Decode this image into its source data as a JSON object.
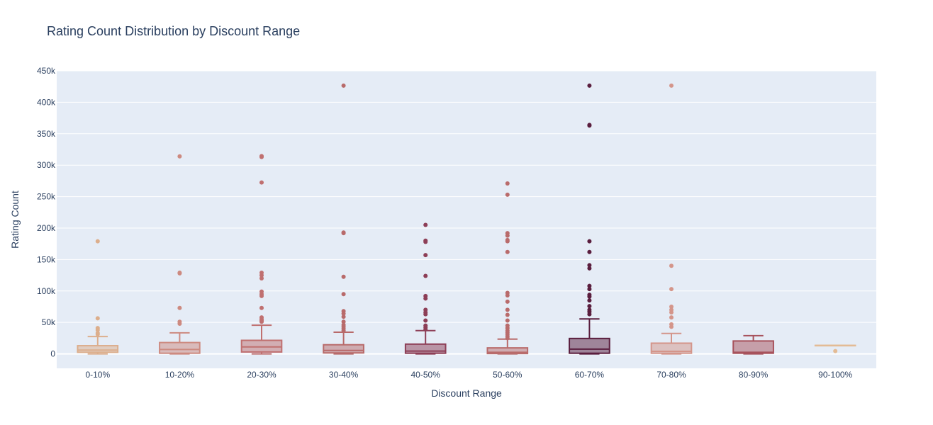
{
  "chart_data": {
    "type": "box",
    "title": "Rating Count Distribution by Discount Range",
    "xlabel": "Discount Range",
    "ylabel": "Rating Count",
    "ylim": [
      -23000,
      450000
    ],
    "yticks": [
      0,
      50000,
      100000,
      150000,
      200000,
      250000,
      300000,
      350000,
      400000,
      450000
    ],
    "ytick_labels": [
      "0",
      "50k",
      "100k",
      "150k",
      "200k",
      "250k",
      "300k",
      "350k",
      "400k",
      "450k"
    ],
    "grid": true,
    "legend": "none",
    "categories": [
      "0-10%",
      "10-20%",
      "20-30%",
      "30-40%",
      "40-50%",
      "50-60%",
      "60-70%",
      "70-80%",
      "80-90%",
      "90-100%"
    ],
    "series": [
      {
        "category": "0-10%",
        "color": "#dcae8c",
        "lowerfence": 0,
        "q1": 2500,
        "median": 6000,
        "q3": 13000,
        "upperfence": 27500,
        "outliers": [
          31000,
          33000,
          38000,
          41000,
          56500,
          179000
        ]
      },
      {
        "category": "10-20%",
        "color": "#cd8a80",
        "lowerfence": 0,
        "q1": 1000,
        "median": 7000,
        "q3": 18000,
        "upperfence": 33500,
        "outliers": [
          48000,
          51000,
          73000,
          128000,
          129000,
          314000
        ]
      },
      {
        "category": "20-30%",
        "color": "#c07070",
        "lowerfence": 0,
        "q1": 3000,
        "median": 11000,
        "q3": 21500,
        "upperfence": 45500,
        "outliers": [
          51000,
          53000,
          55000,
          58000,
          73000,
          92000,
          95000,
          99000,
          120000,
          125000,
          129000,
          272500,
          313000,
          314500
        ]
      },
      {
        "category": "30-40%",
        "color": "#b86a6a",
        "lowerfence": 0,
        "q1": 1500,
        "median": 5500,
        "q3": 14500,
        "upperfence": 34500,
        "outliers": [
          37000,
          40000,
          43000,
          46000,
          51000,
          59000,
          64000,
          68000,
          95000,
          122500,
          192000,
          193000,
          426500
        ]
      },
      {
        "category": "40-50%",
        "color": "#8d3e56",
        "lowerfence": 0,
        "q1": 1000,
        "median": 4500,
        "q3": 15500,
        "upperfence": 37000,
        "outliers": [
          39000,
          42000,
          45000,
          53000,
          63000,
          66000,
          70000,
          88000,
          92000,
          124000,
          157000,
          178000,
          180000,
          205000
        ]
      },
      {
        "category": "50-60%",
        "color": "#b96b6b",
        "lowerfence": 0,
        "q1": 500,
        "median": 2500,
        "q3": 9500,
        "upperfence": 23500,
        "outliers": [
          25000,
          28000,
          31000,
          34000,
          37000,
          41000,
          45000,
          53000,
          62000,
          70000,
          83000,
          93000,
          97000,
          162000,
          179000,
          181000,
          188000,
          192000,
          253000,
          271000
        ]
      },
      {
        "category": "60-70%",
        "color": "#5a1e3e",
        "lowerfence": 0,
        "q1": 1000,
        "median": 7500,
        "q3": 24500,
        "upperfence": 55500,
        "outliers": [
          63000,
          67000,
          70000,
          76000,
          85000,
          91000,
          94000,
          103000,
          108000,
          136000,
          141000,
          162000,
          179000,
          363000,
          364000,
          426500
        ]
      },
      {
        "category": "70-80%",
        "color": "#d4958a",
        "lowerfence": 0,
        "q1": 1000,
        "median": 4000,
        "q3": 17000,
        "upperfence": 32500,
        "outliers": [
          43000,
          47000,
          58000,
          66000,
          70000,
          75000,
          103000,
          140000,
          426500
        ]
      },
      {
        "category": "80-90%",
        "color": "#a7525c",
        "lowerfence": 0,
        "q1": 1000,
        "median": 2500,
        "q3": 20500,
        "upperfence": 29000,
        "outliers": []
      },
      {
        "category": "90-100%",
        "color": "#e3bb95",
        "lowerfence": 13500,
        "q1": 13500,
        "median": 13500,
        "q3": 13500,
        "upperfence": 13500,
        "outliers": [
          4500
        ]
      }
    ]
  }
}
